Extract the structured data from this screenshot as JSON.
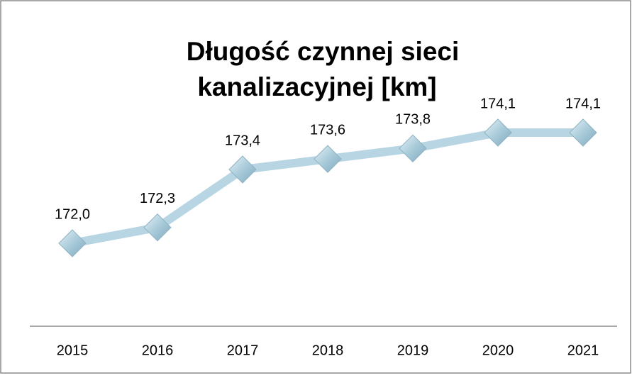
{
  "chart_data": {
    "type": "line",
    "title": [
      "Długość czynnej sieci",
      "kanalizacyjnej [km]"
    ],
    "categories": [
      "2015",
      "2016",
      "2017",
      "2018",
      "2019",
      "2020",
      "2021"
    ],
    "values": [
      172.0,
      172.3,
      173.4,
      173.6,
      173.8,
      174.1,
      174.1
    ],
    "value_labels": [
      "172,0",
      "172,3",
      "173,4",
      "173,6",
      "173,8",
      "174,1",
      "174,1"
    ],
    "color": "#b7d5e2",
    "marker": "diamond"
  }
}
